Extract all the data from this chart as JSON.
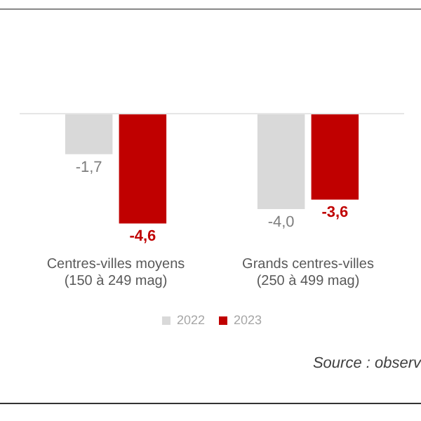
{
  "chart_data": {
    "type": "bar",
    "categories": [
      "Centres-villes moyens\n(150 à 249 mag)",
      "Grands centres-villes\n(250 à 499 mag)"
    ],
    "series": [
      {
        "name": "2022",
        "color": "#d9d9d9",
        "values": [
          -1.7,
          -4.0
        ],
        "value_labels": [
          "-1,7",
          "-4,0"
        ]
      },
      {
        "name": "2023",
        "color": "#c00000",
        "values": [
          -4.6,
          -3.6
        ],
        "value_labels": [
          "-4,6",
          "-3,6"
        ]
      }
    ],
    "annotations": [
      "Source : observ"
    ],
    "legend": "bottom",
    "grid": false
  }
}
